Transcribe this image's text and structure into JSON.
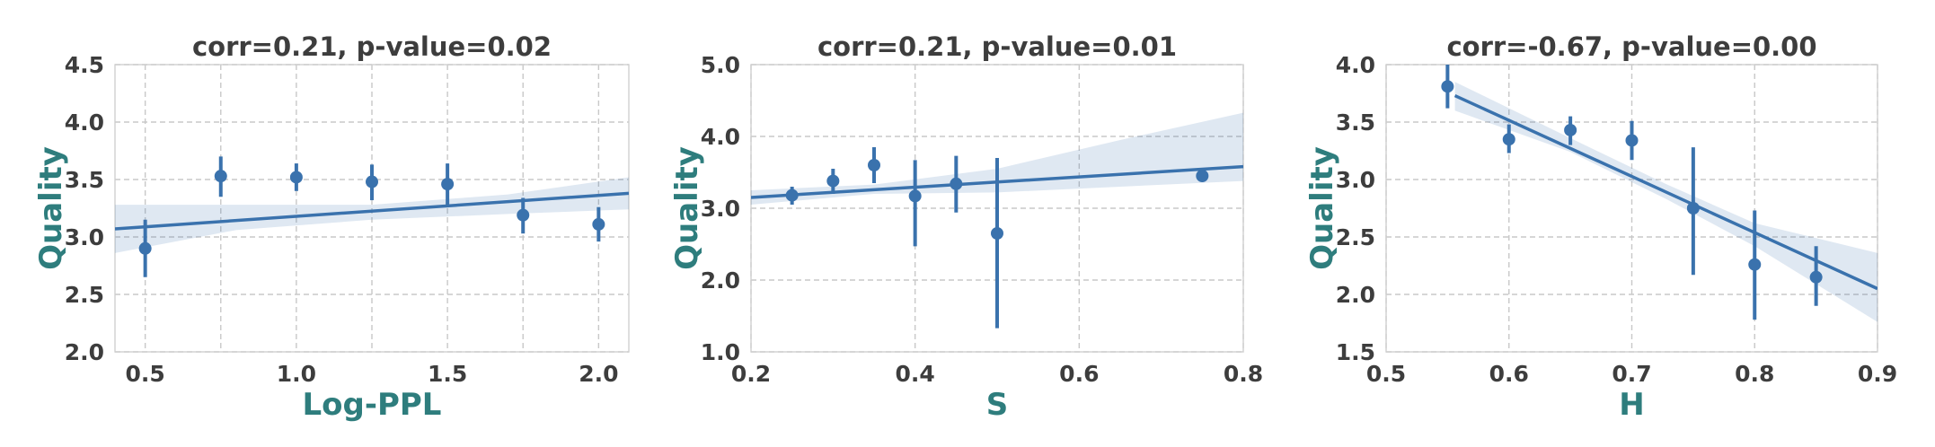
{
  "chart_data": [
    {
      "type": "scatter",
      "title": "corr=0.21, p-value=0.02",
      "xlabel": "Log-PPL",
      "ylabel": "Quality",
      "xlim": [
        0.4,
        2.1
      ],
      "ylim": [
        2.0,
        4.5
      ],
      "xticks": [
        0.5,
        1.0,
        1.5,
        2.0
      ],
      "xtick_labels": [
        "0.5",
        "1.0",
        "1.5",
        "2.0"
      ],
      "yticks": [
        2.0,
        2.5,
        3.0,
        3.5,
        4.0,
        4.5
      ],
      "ytick_labels": [
        "2.0",
        "2.5",
        "3.0",
        "3.5",
        "4.0",
        "4.5"
      ],
      "xgrid": [
        0.5,
        0.75,
        1.0,
        1.25,
        1.5,
        1.75,
        2.0
      ],
      "ygrid": [
        2.0,
        2.5,
        3.0,
        3.5,
        4.0,
        4.5
      ],
      "grid": true,
      "points": [
        {
          "x": 0.5,
          "y": 2.9,
          "low": 2.65,
          "high": 3.15
        },
        {
          "x": 0.75,
          "y": 3.53,
          "low": 3.35,
          "high": 3.7
        },
        {
          "x": 1.0,
          "y": 3.52,
          "low": 3.4,
          "high": 3.64
        },
        {
          "x": 1.25,
          "y": 3.48,
          "low": 3.32,
          "high": 3.63
        },
        {
          "x": 1.5,
          "y": 3.46,
          "low": 3.28,
          "high": 3.64
        },
        {
          "x": 1.75,
          "y": 3.19,
          "low": 3.03,
          "high": 3.34
        },
        {
          "x": 2.0,
          "y": 3.11,
          "low": 2.96,
          "high": 3.26
        }
      ],
      "regression": {
        "x": [
          0.4,
          2.1
        ],
        "y": [
          3.07,
          3.38
        ]
      },
      "ci_band": {
        "x": [
          0.4,
          0.8,
          1.25,
          1.7,
          2.1
        ],
        "lower": [
          2.86,
          3.06,
          3.15,
          3.2,
          3.24
        ],
        "upper": [
          3.28,
          3.28,
          3.28,
          3.37,
          3.52
        ]
      }
    },
    {
      "type": "scatter",
      "title": "corr=0.21, p-value=0.01",
      "xlabel": "S",
      "ylabel": "Quality",
      "xlim": [
        0.2,
        0.8
      ],
      "ylim": [
        1.0,
        5.0
      ],
      "xticks": [
        0.2,
        0.4,
        0.6,
        0.8
      ],
      "xtick_labels": [
        "0.2",
        "0.4",
        "0.6",
        "0.8"
      ],
      "yticks": [
        1.0,
        2.0,
        3.0,
        4.0,
        5.0
      ],
      "ytick_labels": [
        "1.0",
        "2.0",
        "3.0",
        "4.0",
        "5.0"
      ],
      "xgrid": [
        0.2,
        0.4,
        0.6,
        0.8
      ],
      "ygrid": [
        1.0,
        2.0,
        3.0,
        4.0,
        5.0
      ],
      "grid": true,
      "points": [
        {
          "x": 0.25,
          "y": 3.18,
          "low": 3.05,
          "high": 3.3
        },
        {
          "x": 0.3,
          "y": 3.38,
          "low": 3.2,
          "high": 3.55
        },
        {
          "x": 0.35,
          "y": 3.6,
          "low": 3.35,
          "high": 3.85
        },
        {
          "x": 0.4,
          "y": 3.17,
          "low": 2.47,
          "high": 3.67
        },
        {
          "x": 0.45,
          "y": 3.34,
          "low": 2.94,
          "high": 3.73
        },
        {
          "x": 0.5,
          "y": 2.65,
          "low": 1.33,
          "high": 3.7
        },
        {
          "x": 0.75,
          "y": 3.45,
          "low": 3.45,
          "high": 3.45
        }
      ],
      "regression": {
        "x": [
          0.2,
          0.8
        ],
        "y": [
          3.15,
          3.58
        ]
      },
      "ci_band": {
        "x": [
          0.2,
          0.35,
          0.5,
          0.65,
          0.8
        ],
        "lower": [
          3.05,
          3.2,
          3.22,
          3.3,
          3.38
        ],
        "upper": [
          3.25,
          3.33,
          3.55,
          3.95,
          4.33
        ]
      }
    },
    {
      "type": "scatter",
      "title": "corr=-0.67, p-value=0.00",
      "xlabel": "H",
      "ylabel": "Quality",
      "xlim": [
        0.5,
        0.9
      ],
      "ylim": [
        1.5,
        4.0
      ],
      "xticks": [
        0.5,
        0.6,
        0.7,
        0.8,
        0.9
      ],
      "xtick_labels": [
        "0.5",
        "0.6",
        "0.7",
        "0.8",
        "0.9"
      ],
      "yticks": [
        1.5,
        2.0,
        2.5,
        3.0,
        3.5,
        4.0
      ],
      "ytick_labels": [
        "1.5",
        "2.0",
        "2.5",
        "3.0",
        "3.5",
        "4.0"
      ],
      "xgrid": [
        0.5,
        0.6,
        0.7,
        0.8,
        0.9
      ],
      "ygrid": [
        1.5,
        2.0,
        2.5,
        3.0,
        3.5,
        4.0
      ],
      "grid": true,
      "points": [
        {
          "x": 0.55,
          "y": 3.81,
          "low": 3.62,
          "high": 4.0
        },
        {
          "x": 0.6,
          "y": 3.35,
          "low": 3.23,
          "high": 3.48
        },
        {
          "x": 0.65,
          "y": 3.43,
          "low": 3.3,
          "high": 3.55
        },
        {
          "x": 0.7,
          "y": 3.34,
          "low": 3.17,
          "high": 3.51
        },
        {
          "x": 0.75,
          "y": 2.75,
          "low": 2.17,
          "high": 3.28
        },
        {
          "x": 0.8,
          "y": 2.26,
          "low": 1.78,
          "high": 2.73
        },
        {
          "x": 0.85,
          "y": 2.15,
          "low": 1.9,
          "high": 2.42
        }
      ],
      "regression": {
        "x": [
          0.556,
          0.9
        ],
        "y": [
          3.73,
          2.05
        ]
      },
      "ci_band": {
        "x": [
          0.556,
          0.65,
          0.728,
          0.8,
          0.9
        ],
        "lower": [
          3.6,
          3.24,
          2.83,
          2.42,
          1.76
        ],
        "upper": [
          3.85,
          3.36,
          2.96,
          2.62,
          2.36
        ]
      }
    }
  ]
}
